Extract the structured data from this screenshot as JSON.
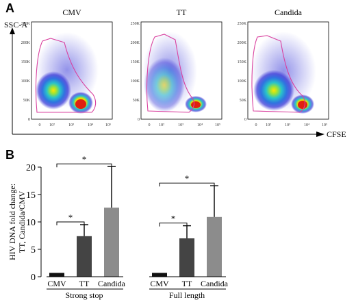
{
  "panel_a": {
    "letter": "A",
    "y_axis_label": "SSC-A",
    "x_axis_label": "CFSE",
    "y_ticks": [
      "0",
      "50K",
      "100K",
      "150K",
      "200K",
      "250K"
    ],
    "x_ticks": [
      "0",
      "10²",
      "10³",
      "10⁴",
      "10⁵"
    ],
    "plots": [
      {
        "title": "CMV"
      },
      {
        "title": "TT"
      },
      {
        "title": "Candida"
      }
    ],
    "colors": {
      "gate": "#d9419f",
      "density_low": "#3a3ad8",
      "density_mid": "#29c4c9",
      "density_high": "#e02010",
      "density_peak": "#ffe600"
    }
  },
  "panel_b": {
    "letter": "B",
    "chart_data": {
      "type": "bar",
      "ylabel_line1": "HIV DNA fold change:",
      "ylabel_line2": "TT, Candida/CMV",
      "ylim": [
        0,
        20
      ],
      "y_ticks": [
        0,
        5,
        10,
        15,
        20
      ],
      "groups": [
        {
          "name": "Strong stop",
          "categories": [
            "CMV",
            "TT",
            "Candida"
          ],
          "values": [
            0.7,
            7.4,
            12.6
          ],
          "errors": [
            0,
            2.1,
            7.5
          ],
          "colors": [
            "#111111",
            "#444444",
            "#8c8c8c"
          ],
          "significance": [
            {
              "from": 0,
              "to": 1,
              "label": "*"
            },
            {
              "from": 0,
              "to": 2,
              "label": "*"
            }
          ]
        },
        {
          "name": "Full length",
          "categories": [
            "CMV",
            "TT",
            "Candida"
          ],
          "values": [
            0.7,
            7.0,
            10.9
          ],
          "errors": [
            0,
            2.3,
            5.7
          ],
          "colors": [
            "#111111",
            "#444444",
            "#8c8c8c"
          ],
          "significance": [
            {
              "from": 0,
              "to": 1,
              "label": "*"
            },
            {
              "from": 0,
              "to": 2,
              "label": "*"
            }
          ]
        }
      ]
    }
  }
}
